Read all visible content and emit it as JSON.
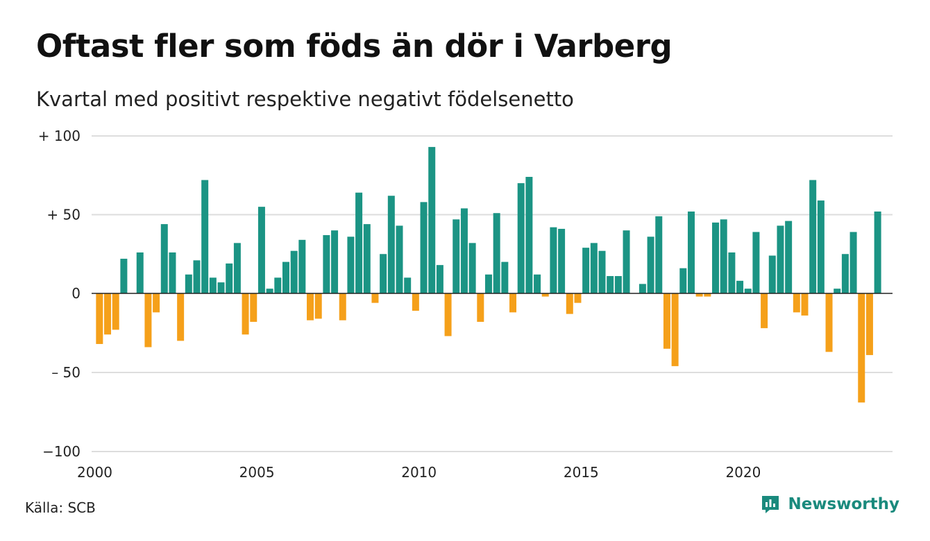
{
  "title": "Oftast fler som föds än dör i Varberg",
  "subtitle": "Kvartal med positivt respektive negativt födelsenetto",
  "source": "Källa: SCB",
  "brand": {
    "name": "Newsworthy",
    "icon": "newsworthy-logo-icon"
  },
  "colors": {
    "positive": "#1b9484",
    "negative": "#f5a01a",
    "grid": "#dddddd",
    "zero_line": "#222222"
  },
  "chart_data": {
    "type": "bar",
    "x_start": "2000 Q1",
    "x_tick_labels": [
      "2000",
      "2005",
      "2010",
      "2015",
      "2020"
    ],
    "y_tick_labels": [
      "+ 100",
      "+  50",
      "0",
      "– 50",
      "−100"
    ],
    "y_ticks": [
      100,
      50,
      0,
      -50,
      -100
    ],
    "ylim": [
      -100,
      100
    ],
    "grid": true,
    "legend": "none",
    "values": [
      -32,
      -26,
      -23,
      22,
      0,
      26,
      -34,
      -12,
      44,
      26,
      -30,
      12,
      21,
      72,
      10,
      7,
      19,
      32,
      -26,
      -18,
      55,
      3,
      10,
      20,
      27,
      34,
      -17,
      -16,
      37,
      40,
      -17,
      36,
      64,
      44,
      -6,
      25,
      62,
      43,
      10,
      -11,
      58,
      93,
      18,
      -27,
      47,
      54,
      32,
      -18,
      12,
      51,
      20,
      -12,
      70,
      74,
      12,
      -2,
      42,
      41,
      -13,
      -6,
      29,
      32,
      27,
      11,
      11,
      40,
      0,
      6,
      36,
      49,
      -35,
      -46,
      16,
      52,
      -2,
      -2,
      45,
      47,
      26,
      8,
      3,
      39,
      -22,
      24,
      43,
      46,
      -12,
      -14,
      72,
      59,
      -37,
      3,
      25,
      39,
      -69,
      -39,
      52
    ]
  }
}
